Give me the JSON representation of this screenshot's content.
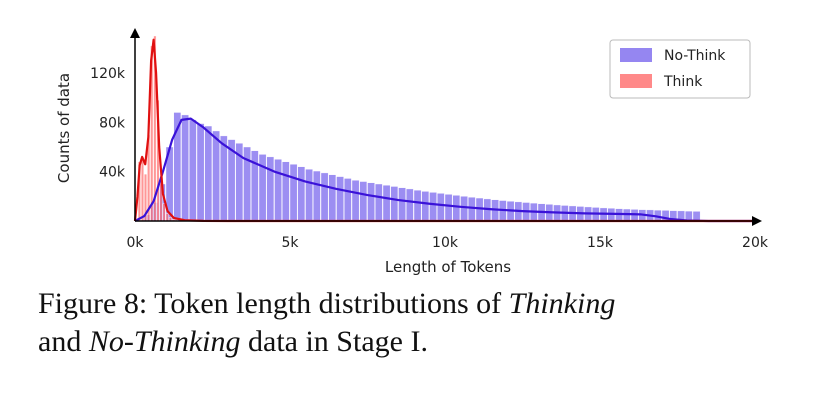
{
  "chart_data": {
    "type": "histogram",
    "xlabel": "Length of Tokens",
    "ylabel": "Counts of data",
    "xlim": [
      0,
      20000
    ],
    "ylim": [
      0,
      150000
    ],
    "x_ticks": [
      {
        "value": 0,
        "label": "0k"
      },
      {
        "value": 5000,
        "label": "5k"
      },
      {
        "value": 10000,
        "label": "10k"
      },
      {
        "value": 15000,
        "label": "15k"
      },
      {
        "value": 20000,
        "label": "20k"
      }
    ],
    "y_ticks": [
      {
        "value": 40000,
        "label": "40k"
      },
      {
        "value": 80000,
        "label": "80k"
      },
      {
        "value": 120000,
        "label": "120k"
      }
    ],
    "legend": {
      "placement": "top-right"
    },
    "grid": false,
    "series": [
      {
        "name": "No-Think",
        "color": "#7b68ee",
        "line_color": "#3a12d8",
        "bin_width": 250,
        "bin_start": 0,
        "values": [
          0,
          5000,
          15000,
          30000,
          60000,
          88000,
          86000,
          82000,
          79000,
          77000,
          73000,
          69000,
          66000,
          63000,
          60000,
          57000,
          54000,
          52000,
          50000,
          48000,
          46000,
          44000,
          42000,
          40500,
          39000,
          37500,
          36000,
          34500,
          33000,
          32000,
          31000,
          30000,
          29000,
          28000,
          27000,
          26000,
          25000,
          24000,
          23200,
          22400,
          21600,
          20800,
          20000,
          19300,
          18600,
          17900,
          17200,
          16600,
          16000,
          15500,
          15000,
          14500,
          14000,
          13500,
          13000,
          12600,
          12200,
          11800,
          11400,
          11000,
          10600,
          10300,
          10000,
          9700,
          9400,
          9200,
          9000,
          8800,
          8600,
          8400,
          8200,
          8000,
          7800
        ]
      },
      {
        "name": "Think",
        "color": "#ff6b6b",
        "line_color": "#e01010",
        "bin_width": 100,
        "bin_start": 0,
        "values": [
          1000,
          48000,
          52000,
          38000,
          70000,
          142000,
          150000,
          98000,
          36000,
          14000,
          6000,
          3000,
          1500,
          800
        ]
      }
    ],
    "kde": {
      "No-Think": [
        [
          0,
          0
        ],
        [
          300,
          4000
        ],
        [
          600,
          16000
        ],
        [
          900,
          40000
        ],
        [
          1200,
          66000
        ],
        [
          1500,
          82000
        ],
        [
          1800,
          83000
        ],
        [
          2200,
          76000
        ],
        [
          2800,
          63000
        ],
        [
          3500,
          51000
        ],
        [
          4500,
          40000
        ],
        [
          5500,
          32000
        ],
        [
          6500,
          26000
        ],
        [
          7500,
          21000
        ],
        [
          8500,
          17000
        ],
        [
          9500,
          14000
        ],
        [
          10500,
          11500
        ],
        [
          11500,
          9500
        ],
        [
          12500,
          8000
        ],
        [
          13500,
          7000
        ],
        [
          14500,
          6200
        ],
        [
          15500,
          5800
        ],
        [
          16300,
          5400
        ],
        [
          16800,
          3800
        ],
        [
          17300,
          1500
        ],
        [
          17800,
          400
        ],
        [
          18500,
          0
        ],
        [
          20000,
          0
        ]
      ],
      "Think": [
        [
          0,
          0
        ],
        [
          80,
          20000
        ],
        [
          150,
          45000
        ],
        [
          230,
          52000
        ],
        [
          330,
          46000
        ],
        [
          430,
          68000
        ],
        [
          520,
          130000
        ],
        [
          600,
          147000
        ],
        [
          680,
          120000
        ],
        [
          780,
          60000
        ],
        [
          900,
          22000
        ],
        [
          1050,
          8000
        ],
        [
          1250,
          2500
        ],
        [
          1600,
          600
        ],
        [
          2200,
          100
        ],
        [
          3000,
          0
        ],
        [
          20000,
          0
        ]
      ]
    }
  },
  "caption": {
    "label": "Figure 8: Token length distributions of",
    "term1": "Thinking",
    "middle": "and",
    "term2": "No-Thinking",
    "end": "data in Stage I."
  }
}
